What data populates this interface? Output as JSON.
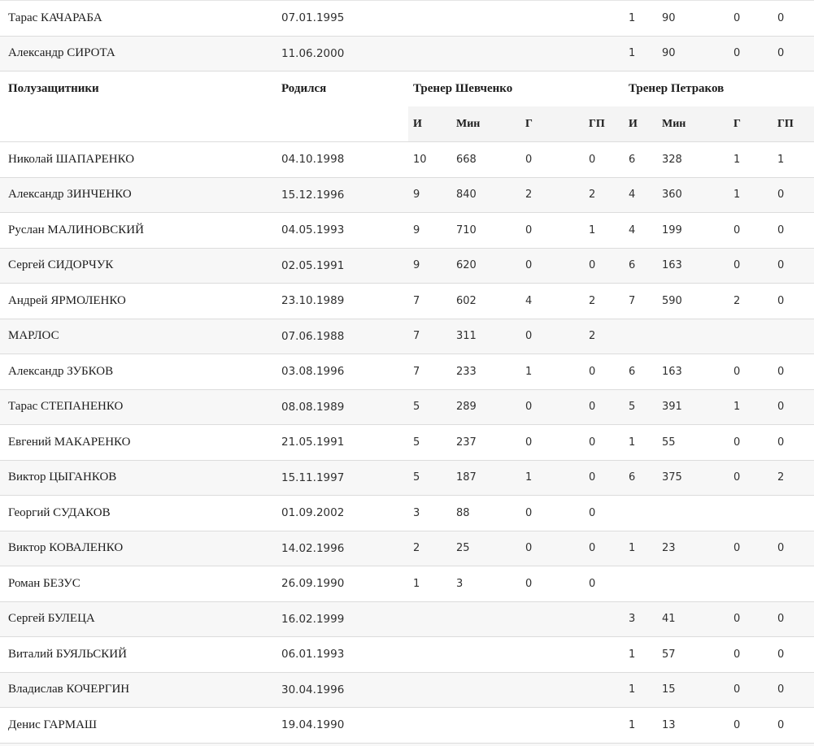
{
  "table": {
    "header": {
      "group_label": "Полузащитники",
      "born_label": "Родился",
      "coach1_label": "Тренер Шевченко",
      "coach2_label": "Тренер Петраков",
      "stat_cols": [
        "И",
        "Мин",
        "Г",
        "ГП"
      ]
    },
    "pre_rows": [
      {
        "name": "Тарас КАЧАРАБА",
        "born": "07.01.1995",
        "shev": [
          "",
          "",
          "",
          ""
        ],
        "petr": [
          "1",
          "90",
          "0",
          "0"
        ]
      },
      {
        "name": "Александр СИРОТА",
        "born": "11.06.2000",
        "shev": [
          "",
          "",
          "",
          ""
        ],
        "petr": [
          "1",
          "90",
          "0",
          "0"
        ]
      }
    ],
    "rows": [
      {
        "name": "Николай ШАПАРЕНКО",
        "born": "04.10.1998",
        "shev": [
          "10",
          "668",
          "0",
          "0"
        ],
        "petr": [
          "6",
          "328",
          "1",
          "1"
        ]
      },
      {
        "name": "Александр ЗИНЧЕНКО",
        "born": "15.12.1996",
        "shev": [
          "9",
          "840",
          "2",
          "2"
        ],
        "petr": [
          "4",
          "360",
          "1",
          "0"
        ]
      },
      {
        "name": "Руслан МАЛИНОВСКИЙ",
        "born": "04.05.1993",
        "shev": [
          "9",
          "710",
          "0",
          "1"
        ],
        "petr": [
          "4",
          "199",
          "0",
          "0"
        ]
      },
      {
        "name": "Сергей СИДОРЧУК",
        "born": "02.05.1991",
        "shev": [
          "9",
          "620",
          "0",
          "0"
        ],
        "petr": [
          "6",
          "163",
          "0",
          "0"
        ]
      },
      {
        "name": "Андрей ЯРМОЛЕНКО",
        "born": "23.10.1989",
        "shev": [
          "7",
          "602",
          "4",
          "2"
        ],
        "petr": [
          "7",
          "590",
          "2",
          "0"
        ]
      },
      {
        "name": "МАРЛОС",
        "born": "07.06.1988",
        "shev": [
          "7",
          "311",
          "0",
          "2"
        ],
        "petr": [
          "",
          "",
          "",
          ""
        ]
      },
      {
        "name": "Александр ЗУБКОВ",
        "born": "03.08.1996",
        "shev": [
          "7",
          "233",
          "1",
          "0"
        ],
        "petr": [
          "6",
          "163",
          "0",
          "0"
        ]
      },
      {
        "name": "Тарас СТЕПАНЕНКО",
        "born": "08.08.1989",
        "shev": [
          "5",
          "289",
          "0",
          "0"
        ],
        "petr": [
          "5",
          "391",
          "1",
          "0"
        ]
      },
      {
        "name": "Евгений МАКАРЕНКО",
        "born": "21.05.1991",
        "shev": [
          "5",
          "237",
          "0",
          "0"
        ],
        "petr": [
          "1",
          "55",
          "0",
          "0"
        ]
      },
      {
        "name": "Виктор ЦЫГАНКОВ",
        "born": "15.11.1997",
        "shev": [
          "5",
          "187",
          "1",
          "0"
        ],
        "petr": [
          "6",
          "375",
          "0",
          "2"
        ]
      },
      {
        "name": "Георгий СУДАКОВ",
        "born": "01.09.2002",
        "shev": [
          "3",
          "88",
          "0",
          "0"
        ],
        "petr": [
          "",
          "",
          "",
          ""
        ]
      },
      {
        "name": "Виктор КОВАЛЕНКО",
        "born": "14.02.1996",
        "shev": [
          "2",
          "25",
          "0",
          "0"
        ],
        "petr": [
          "1",
          "23",
          "0",
          "0"
        ]
      },
      {
        "name": "Роман БЕЗУС",
        "born": "26.09.1990",
        "shev": [
          "1",
          "3",
          "0",
          "0"
        ],
        "petr": [
          "",
          "",
          "",
          ""
        ]
      },
      {
        "name": "Сергей БУЛЕЦА",
        "born": "16.02.1999",
        "shev": [
          "",
          "",
          "",
          ""
        ],
        "petr": [
          "3",
          "41",
          "0",
          "0"
        ]
      },
      {
        "name": "Виталий БУЯЛЬСКИЙ",
        "born": "06.01.1993",
        "shev": [
          "",
          "",
          "",
          ""
        ],
        "petr": [
          "1",
          "57",
          "0",
          "0"
        ]
      },
      {
        "name": "Владислав КОЧЕРГИН",
        "born": "30.04.1996",
        "shev": [
          "",
          "",
          "",
          ""
        ],
        "petr": [
          "1",
          "15",
          "0",
          "0"
        ]
      },
      {
        "name": "Денис ГАРМАШ",
        "born": "19.04.1990",
        "shev": [
          "",
          "",
          "",
          ""
        ],
        "petr": [
          "1",
          "13",
          "0",
          "0"
        ]
      }
    ],
    "colors": {
      "stripe": "#f7f7f7",
      "border": "#dcdcdc",
      "subheader_bg": "#f4f4f4",
      "text": "#1c1c1c"
    }
  }
}
